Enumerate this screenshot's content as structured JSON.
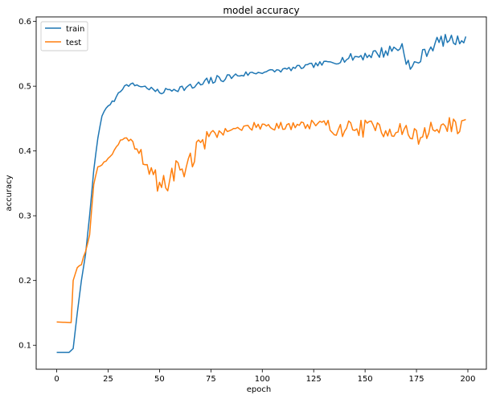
{
  "chart_data": {
    "type": "line",
    "title": "model accuracy",
    "xlabel": "epoch",
    "ylabel": "accuracy",
    "xlim": [
      -10,
      209
    ],
    "ylim": [
      0.063,
      0.607
    ],
    "xticks": [
      0,
      25,
      50,
      75,
      100,
      125,
      150,
      175,
      200
    ],
    "yticks": [
      0.1,
      0.2,
      0.3,
      0.4,
      0.5,
      0.6
    ],
    "ytick_labels": [
      "0.1",
      "0.2",
      "0.3",
      "0.4",
      "0.5",
      "0.6"
    ],
    "grid": false,
    "legend_position": "upper-left",
    "series": [
      {
        "name": "train",
        "color": "#1f77b4",
        "anchors": [
          [
            0,
            0.089
          ],
          [
            6,
            0.089
          ],
          [
            8,
            0.095
          ],
          [
            10,
            0.15
          ],
          [
            12,
            0.2
          ],
          [
            14,
            0.24
          ],
          [
            16,
            0.3
          ],
          [
            18,
            0.37
          ],
          [
            20,
            0.42
          ],
          [
            22,
            0.455
          ],
          [
            25,
            0.47
          ],
          [
            28,
            0.478
          ],
          [
            30,
            0.49
          ],
          [
            33,
            0.5
          ],
          [
            36,
            0.503
          ],
          [
            40,
            0.501
          ],
          [
            45,
            0.497
          ],
          [
            50,
            0.49
          ],
          [
            55,
            0.495
          ],
          [
            60,
            0.497
          ],
          [
            65,
            0.498
          ],
          [
            70,
            0.502
          ],
          [
            75,
            0.508
          ],
          [
            80,
            0.512
          ],
          [
            90,
            0.518
          ],
          [
            100,
            0.522
          ],
          [
            110,
            0.525
          ],
          [
            120,
            0.53
          ],
          [
            130,
            0.535
          ],
          [
            140,
            0.542
          ],
          [
            150,
            0.548
          ],
          [
            160,
            0.553
          ],
          [
            168,
            0.562
          ],
          [
            172,
            0.525
          ],
          [
            176,
            0.54
          ],
          [
            180,
            0.555
          ],
          [
            185,
            0.568
          ],
          [
            190,
            0.572
          ],
          [
            195,
            0.57
          ],
          [
            199,
            0.576
          ]
        ],
        "noise": [
          [
            0,
            0
          ],
          [
            10,
            0
          ],
          [
            28,
            0.002
          ],
          [
            40,
            0.003
          ],
          [
            60,
            0.005
          ],
          [
            70,
            0.008
          ],
          [
            100,
            0.003
          ],
          [
            130,
            0.004
          ],
          [
            150,
            0.008
          ],
          [
            165,
            0.01
          ],
          [
            175,
            0.01
          ],
          [
            199,
            0.008
          ]
        ],
        "seed": 7
      },
      {
        "name": "test",
        "color": "#ff7f0e",
        "anchors": [
          [
            0,
            0.136
          ],
          [
            7,
            0.135
          ],
          [
            8,
            0.2
          ],
          [
            10,
            0.22
          ],
          [
            12,
            0.225
          ],
          [
            14,
            0.245
          ],
          [
            16,
            0.27
          ],
          [
            18,
            0.35
          ],
          [
            20,
            0.375
          ],
          [
            22,
            0.38
          ],
          [
            25,
            0.388
          ],
          [
            28,
            0.4
          ],
          [
            31,
            0.415
          ],
          [
            34,
            0.42
          ],
          [
            36,
            0.415
          ],
          [
            40,
            0.402
          ],
          [
            42,
            0.385
          ],
          [
            46,
            0.37
          ],
          [
            50,
            0.34
          ],
          [
            54,
            0.355
          ],
          [
            58,
            0.37
          ],
          [
            62,
            0.375
          ],
          [
            66,
            0.39
          ],
          [
            70,
            0.41
          ],
          [
            75,
            0.425
          ],
          [
            80,
            0.43
          ],
          [
            90,
            0.435
          ],
          [
            100,
            0.44
          ],
          [
            110,
            0.44
          ],
          [
            120,
            0.44
          ],
          [
            130,
            0.437
          ],
          [
            140,
            0.435
          ],
          [
            150,
            0.435
          ],
          [
            160,
            0.435
          ],
          [
            170,
            0.43
          ],
          [
            175,
            0.42
          ],
          [
            180,
            0.43
          ],
          [
            190,
            0.44
          ],
          [
            199,
            0.437
          ]
        ],
        "noise": [
          [
            0,
            0
          ],
          [
            8,
            0
          ],
          [
            16,
            0.002
          ],
          [
            34,
            0.002
          ],
          [
            42,
            0.01
          ],
          [
            50,
            0.02
          ],
          [
            60,
            0.022
          ],
          [
            70,
            0.015
          ],
          [
            80,
            0.006
          ],
          [
            100,
            0.006
          ],
          [
            110,
            0.012
          ],
          [
            150,
            0.014
          ],
          [
            170,
            0.015
          ],
          [
            199,
            0.012
          ]
        ],
        "seed": 19
      }
    ]
  }
}
